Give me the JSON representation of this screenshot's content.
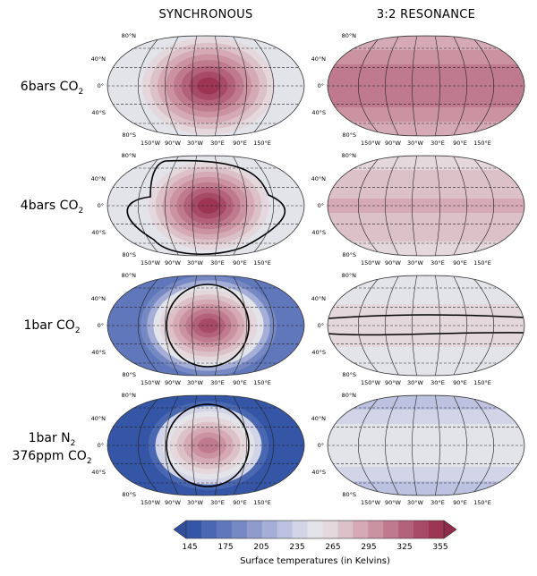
{
  "columns": [
    "SYNCHRONOUS",
    "3:2 RESONANCE"
  ],
  "rows": [
    {
      "label_main": "6bars CO",
      "label_sub": "2",
      "label_line2": "",
      "label_line2_sub": ""
    },
    {
      "label_main": "4bars CO",
      "label_sub": "2",
      "label_line2": "",
      "label_line2_sub": ""
    },
    {
      "label_main": "1bar CO",
      "label_sub": "2",
      "label_line2": "",
      "label_line2_sub": ""
    },
    {
      "label_main": "1bar N",
      "label_sub": "2",
      "label_line2": "376ppm CO",
      "label_line2_sub": "2"
    }
  ],
  "lat_labels": [
    "80°N",
    "40°N",
    "0°",
    "40°S",
    "80°S"
  ],
  "lon_labels": [
    "150°W",
    "90°W",
    "30°W",
    "30°E",
    "90°E",
    "150°E"
  ],
  "colorbar": {
    "ticks": [
      "145",
      "175",
      "205",
      "235",
      "265",
      "295",
      "325",
      "355"
    ],
    "caption": "Surface temperatures (in Kelvins)",
    "colors": [
      "#3556a6",
      "#4a68b2",
      "#6078bb",
      "#7789c4",
      "#8e9bcc",
      "#a5aed6",
      "#bcc2df",
      "#d2d5e7",
      "#e3e3ea",
      "#e4d8dc",
      "#ddc1c9",
      "#d5a9b6",
      "#cb92a2",
      "#c07a8f",
      "#b4627b",
      "#a74a67",
      "#9b3553"
    ],
    "low_extend": "#2f4f9e",
    "high_extend": "#8f2a4a"
  },
  "maps": [
    {
      "column": "SYNCHRONOUS",
      "row": "6bars CO2",
      "pattern": "sync",
      "spot_level": "high",
      "contour": "none"
    },
    {
      "column": "3:2 RESONANCE",
      "row": "6bars CO2",
      "pattern": "bands",
      "band_level": "high",
      "contour": "none"
    },
    {
      "column": "SYNCHRONOUS",
      "row": "4bars CO2",
      "pattern": "sync",
      "spot_level": "mid",
      "contour": "wide"
    },
    {
      "column": "3:2 RESONANCE",
      "row": "4bars CO2",
      "pattern": "bands",
      "band_level": "mid",
      "contour": "none"
    },
    {
      "column": "SYNCHRONOUS",
      "row": "1bar CO2",
      "pattern": "sync_cold",
      "spot_level": "mid",
      "contour": "round"
    },
    {
      "column": "3:2 RESONANCE",
      "row": "1bar CO2",
      "pattern": "bands",
      "band_level": "low",
      "contour": "equator_lines"
    },
    {
      "column": "SYNCHRONOUS",
      "row": "1bar N2 376ppm CO2",
      "pattern": "sync_cold",
      "spot_level": "cold",
      "contour": "round"
    },
    {
      "column": "3:2 RESONANCE",
      "row": "1bar N2 376ppm CO2",
      "pattern": "bands",
      "band_level": "cool",
      "contour": "none"
    }
  ]
}
